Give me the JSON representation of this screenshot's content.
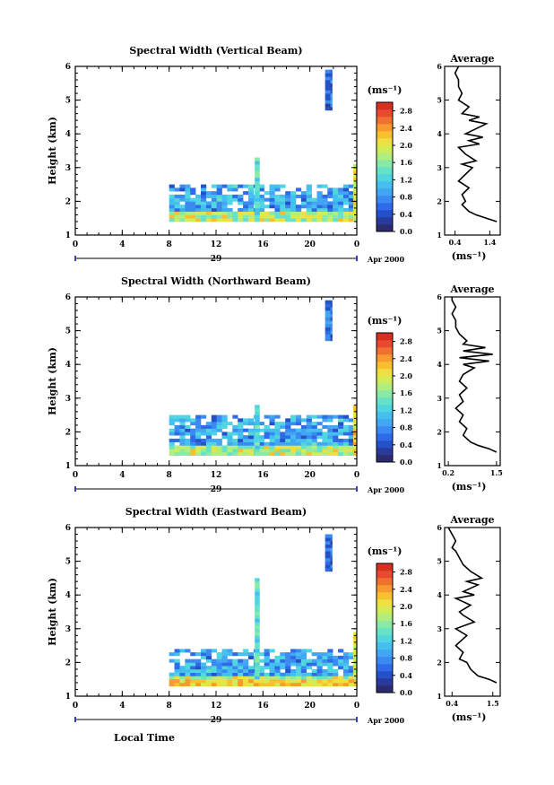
{
  "colors": {
    "scale": [
      "#2b2b6e",
      "#2a3a9c",
      "#2450c8",
      "#2f6be8",
      "#3a8af2",
      "#42a6f4",
      "#45c0ee",
      "#50d6e0",
      "#66e2c6",
      "#88eaa6",
      "#b0ee80",
      "#d2ec58",
      "#eee040",
      "#f8c030",
      "#f89a30",
      "#f07030",
      "#e84a30",
      "#d83020"
    ]
  },
  "date_label": "Apr 2000",
  "day_label": "29",
  "xaxis_title": "Local Time",
  "chart_data": [
    {
      "type": "heatmap",
      "title": "Spectral Width (Vertical Beam)",
      "ylabel": "Height (km)",
      "xticks": [
        "0",
        "4",
        "8",
        "12",
        "16",
        "20",
        "0"
      ],
      "yticks": [
        "1",
        "2",
        "3",
        "4",
        "5",
        "6"
      ],
      "xlim": [
        0,
        24
      ],
      "ylim": [
        1,
        6
      ],
      "colorbar": {
        "label": "(ms⁻¹)",
        "ticks": [
          "0.0",
          "0.4",
          "0.8",
          "1.2",
          "1.6",
          "2.0",
          "2.4",
          "2.8"
        ],
        "range": [
          0.0,
          3.0
        ]
      },
      "blocks": [
        {
          "x0": 8.0,
          "x1": 23.9,
          "y0": 1.4,
          "y1": 2.5,
          "value": 0.9
        },
        {
          "x0": 21.3,
          "x1": 21.9,
          "y0": 4.7,
          "y1": 5.9,
          "value": 0.6
        },
        {
          "x0": 15.3,
          "x1": 15.7,
          "y0": 1.4,
          "y1": 3.3,
          "value": 1.3
        },
        {
          "x0": 23.7,
          "x1": 24.0,
          "y0": 1.4,
          "y1": 3.1,
          "value": 2.0
        }
      ],
      "profile": {
        "title": "Average",
        "xlabel": "(ms⁻¹)",
        "xticks": [
          "0.4",
          "1.4"
        ],
        "xlim": [
          0.1,
          1.7
        ],
        "x": [
          1.6,
          1.3,
          1.0,
          0.8,
          0.6,
          0.7,
          0.6,
          0.8,
          0.5,
          0.7,
          0.9,
          0.6,
          1.0,
          0.7,
          0.5,
          1.1,
          0.8,
          1.2,
          0.7,
          0.9,
          1.3,
          0.8,
          1.1,
          0.6,
          0.8,
          0.5,
          0.6,
          0.5,
          0.5,
          0.4,
          0.5
        ],
        "y": [
          1.4,
          1.5,
          1.6,
          1.7,
          1.9,
          2.0,
          2.2,
          2.4,
          2.6,
          2.8,
          3.0,
          3.1,
          3.2,
          3.4,
          3.6,
          3.7,
          3.8,
          3.9,
          4.0,
          4.1,
          4.3,
          4.4,
          4.5,
          4.6,
          4.8,
          5.0,
          5.2,
          5.4,
          5.6,
          5.8,
          6.0
        ],
        "ylim": [
          1,
          6
        ]
      }
    },
    {
      "type": "heatmap",
      "title": "Spectral Width (Northward Beam)",
      "ylabel": "Height (km)",
      "xticks": [
        "0",
        "4",
        "8",
        "12",
        "16",
        "20",
        "0"
      ],
      "yticks": [
        "1",
        "2",
        "3",
        "4",
        "5",
        "6"
      ],
      "xlim": [
        0,
        24
      ],
      "ylim": [
        1,
        6
      ],
      "colorbar": {
        "label": "(ms⁻¹)",
        "ticks": [
          "0.0",
          "0.4",
          "0.8",
          "1.2",
          "1.6",
          "2.0",
          "2.4",
          "2.8"
        ],
        "range": [
          0.0,
          3.0
        ]
      },
      "blocks": [
        {
          "x0": 8.0,
          "x1": 23.9,
          "y0": 1.3,
          "y1": 2.5,
          "value": 0.9
        },
        {
          "x0": 21.3,
          "x1": 21.9,
          "y0": 4.7,
          "y1": 5.9,
          "value": 0.6
        },
        {
          "x0": 15.3,
          "x1": 15.7,
          "y0": 1.3,
          "y1": 2.8,
          "value": 1.3
        },
        {
          "x0": 23.7,
          "x1": 24.0,
          "y0": 1.3,
          "y1": 2.8,
          "value": 2.2
        }
      ],
      "profile": {
        "title": "Average",
        "xlabel": "(ms⁻¹)",
        "xticks": [
          "0.2",
          "1.5"
        ],
        "xlim": [
          0.1,
          1.6
        ],
        "x": [
          1.5,
          1.3,
          1.0,
          0.8,
          0.6,
          0.7,
          0.5,
          0.6,
          0.4,
          0.6,
          0.5,
          0.7,
          0.5,
          0.6,
          0.9,
          0.6,
          1.3,
          0.5,
          1.4,
          0.6,
          1.2,
          0.6,
          0.7,
          0.5,
          0.4,
          0.4,
          0.3,
          0.4,
          0.3,
          0.3
        ],
        "y": [
          1.4,
          1.5,
          1.6,
          1.7,
          1.9,
          2.1,
          2.3,
          2.5,
          2.7,
          2.9,
          3.1,
          3.3,
          3.5,
          3.7,
          3.9,
          4.0,
          4.1,
          4.2,
          4.3,
          4.4,
          4.5,
          4.6,
          4.7,
          4.9,
          5.1,
          5.3,
          5.5,
          5.7,
          5.9,
          6.0
        ],
        "ylim": [
          1,
          6
        ]
      }
    },
    {
      "type": "heatmap",
      "title": "Spectral Width (Eastward Beam)",
      "ylabel": "Height (km)",
      "xticks": [
        "0",
        "4",
        "8",
        "12",
        "16",
        "20",
        "0"
      ],
      "yticks": [
        "1",
        "2",
        "3",
        "4",
        "5",
        "6"
      ],
      "xlim": [
        0,
        24
      ],
      "ylim": [
        1,
        6
      ],
      "colorbar": {
        "label": "(ms⁻¹)",
        "ticks": [
          "0.0",
          "0.4",
          "0.8",
          "1.2",
          "1.6",
          "2.0",
          "2.4",
          "2.8"
        ],
        "range": [
          0.0,
          3.0
        ]
      },
      "blocks": [
        {
          "x0": 8.0,
          "x1": 23.9,
          "y0": 1.3,
          "y1": 2.4,
          "value": 0.9
        },
        {
          "x0": 21.3,
          "x1": 21.9,
          "y0": 4.7,
          "y1": 5.8,
          "value": 0.6
        },
        {
          "x0": 15.3,
          "x1": 15.7,
          "y0": 1.3,
          "y1": 4.5,
          "value": 1.3
        },
        {
          "x0": 23.7,
          "x1": 24.0,
          "y0": 1.3,
          "y1": 2.9,
          "value": 2.0
        },
        {
          "x0": 8.0,
          "x1": 23.9,
          "y0": 1.3,
          "y1": 1.5,
          "value": 2.2
        }
      ],
      "profile": {
        "title": "Average",
        "xlabel": "(ms⁻¹)",
        "xticks": [
          "0.4",
          "1.5"
        ],
        "xlim": [
          0.2,
          1.7
        ],
        "x": [
          1.6,
          1.4,
          1.1,
          0.9,
          0.8,
          0.6,
          0.7,
          0.5,
          0.6,
          0.8,
          0.5,
          1.0,
          0.7,
          0.6,
          0.9,
          0.5,
          1.0,
          0.7,
          1.1,
          0.8,
          1.2,
          0.9,
          0.7,
          0.6,
          0.5,
          0.4,
          0.5,
          0.4,
          0.3
        ],
        "y": [
          1.4,
          1.5,
          1.6,
          1.8,
          2.0,
          2.1,
          2.3,
          2.5,
          2.6,
          2.8,
          3.0,
          3.2,
          3.4,
          3.5,
          3.7,
          3.9,
          4.0,
          4.1,
          4.3,
          4.4,
          4.5,
          4.7,
          4.9,
          5.1,
          5.3,
          5.4,
          5.6,
          5.8,
          6.0
        ],
        "ylim": [
          1,
          6
        ]
      }
    }
  ]
}
